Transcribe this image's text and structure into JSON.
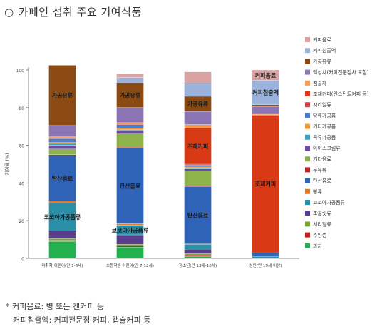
{
  "title": "카페인 섭취 주요 기여식품",
  "title_bullet": "○",
  "footnotes": [
    "* 커피음료: 병 또는 캔커피 등",
    "커피침출액: 커피전문점 커피, 캡슐커피 등"
  ],
  "colors": {
    "과자": "#22b14c",
    "추잉껌": "#c8201e",
    "시리얼류": "#77a53a",
    "초콜릿류": "#5a3d8c",
    "코코아가공품류": "#2c8fa8",
    "빵류": "#e07b2b",
    "탄산음료": "#2f63b8",
    "두유류": "#b5292a",
    "기타음료": "#8fb34b",
    "아이스크림류": "#6a4b9e",
    "곡류가공품": "#36a5bf",
    "기타가공품": "#f0993a",
    "당류가공품": "#4a7ec9",
    "시리얼류2": "#c94848",
    "조제커피(인스턴트커피 등)": "#d83a16",
    "침출차": "#f59a52",
    "액상차(커피전문점차 포함)": "#8b75b5",
    "가공유류": "#8a4a12",
    "커피침출액": "#9bb3dc",
    "커피음료": "#d9a3a3"
  },
  "chart_data": {
    "type": "bar",
    "stacked": true,
    "ylabel": "기여율 (%)",
    "ylim": [
      0,
      100
    ],
    "yticks": [
      0,
      20,
      40,
      60,
      80,
      100
    ],
    "categories": [
      "미취학 어린이(만 1-6세)",
      "초등학생 어린이(만 7-12세)",
      "청소년(만 13세-18세)",
      "성인(만 19세 이상)"
    ],
    "legend": [
      "커피음료",
      "커피침출액",
      "가공유류",
      "액상차(커피전문점차 포함)",
      "침출차",
      "조제커피(인스턴트커피 등)",
      "시리얼류",
      "당류가공품",
      "기타가공품",
      "곡류가공품",
      "아이스크림류",
      "기타음료",
      "두유류",
      "탄산음료",
      "빵류",
      "코코아가공품류",
      "초콜릿류",
      "시리얼류",
      "추잉껌",
      "과자"
    ],
    "series": [
      {
        "name": "과자",
        "colorKey": "과자",
        "values": [
          9,
          6,
          1,
          0
        ]
      },
      {
        "name": "추잉껌",
        "colorKey": "추잉껌",
        "values": [
          0.5,
          0.5,
          0.5,
          0
        ]
      },
      {
        "name": "시리얼류",
        "colorKey": "시리얼류",
        "values": [
          1,
          1,
          1,
          0
        ]
      },
      {
        "name": "초콜릿류",
        "colorKey": "초콜릿류",
        "values": [
          4,
          5,
          2,
          0
        ]
      },
      {
        "name": "코코아가공품류",
        "colorKey": "코코아가공품류",
        "values": [
          15,
          5,
          3,
          1
        ]
      },
      {
        "name": "빵류",
        "colorKey": "빵류",
        "values": [
          1,
          1,
          0.5,
          0
        ]
      },
      {
        "name": "탄산음료",
        "colorKey": "탄산음료",
        "values": [
          24,
          40,
          30,
          2
        ]
      },
      {
        "name": "두유류",
        "colorKey": "두유류",
        "values": [
          0.5,
          0.5,
          0.5,
          0
        ]
      },
      {
        "name": "기타음료",
        "colorKey": "기타음료",
        "values": [
          3,
          7,
          8,
          0
        ]
      },
      {
        "name": "아이스크림류",
        "colorKey": "아이스크림류",
        "values": [
          2,
          2,
          1,
          0
        ]
      },
      {
        "name": "곡류가공품",
        "colorKey": "곡류가공품",
        "values": [
          1,
          0.5,
          0.5,
          0
        ]
      },
      {
        "name": "기타가공품",
        "colorKey": "기타가공품",
        "values": [
          0.5,
          0.5,
          0.5,
          0
        ]
      },
      {
        "name": "당류가공품",
        "colorKey": "당류가공품",
        "values": [
          2,
          2,
          1,
          0
        ]
      },
      {
        "name": "시리얼류",
        "colorKey": "시리얼류2",
        "values": [
          0.5,
          0.5,
          0.5,
          0
        ]
      },
      {
        "name": "조제커피(인스턴트커피 등)",
        "colorKey": "조제커피(인스턴트커피 등)",
        "values": [
          0,
          0,
          19,
          73
        ]
      },
      {
        "name": "침출차",
        "colorKey": "침출차",
        "values": [
          0.5,
          0.5,
          2,
          0.5
        ]
      },
      {
        "name": "액상차(커피전문점차 포함)",
        "colorKey": "액상차(커피전문점차 포함)",
        "values": [
          6,
          8,
          7,
          4
        ]
      },
      {
        "name": "가공유류",
        "colorKey": "가공유류",
        "values": [
          32,
          13,
          8,
          1
        ]
      },
      {
        "name": "커피침출액",
        "colorKey": "커피침출액",
        "values": [
          0,
          3,
          7,
          13
        ]
      },
      {
        "name": "커피음료",
        "colorKey": "커피음료",
        "values": [
          0,
          2,
          6,
          5.5
        ]
      }
    ],
    "bar_labels": [
      {
        "category": 0,
        "series": "가공유류",
        "text": "가공유류"
      },
      {
        "category": 0,
        "series": "탄산음료",
        "text": "탄산음료"
      },
      {
        "category": 0,
        "series": "코코아가공품류",
        "text": "코코아가공품류"
      },
      {
        "category": 1,
        "series": "가공유류",
        "text": "가공유류"
      },
      {
        "category": 1,
        "series": "탄산음료",
        "text": "탄산음료"
      },
      {
        "category": 1,
        "series": "코코아가공품류",
        "text": "코코아가공품류"
      },
      {
        "category": 2,
        "series": "가공유류",
        "text": "가공유류"
      },
      {
        "category": 2,
        "series": "조제커피(인스턴트커피 등)",
        "text": "조제커피"
      },
      {
        "category": 2,
        "series": "탄산음료",
        "text": "탄산음료"
      },
      {
        "category": 3,
        "series": "커피음료",
        "text": "커피음료"
      },
      {
        "category": 3,
        "series": "커피침출액",
        "text": "커피침출액"
      },
      {
        "category": 3,
        "series": "조제커피(인스턴트커피 등)",
        "text": "조제커피"
      }
    ]
  }
}
